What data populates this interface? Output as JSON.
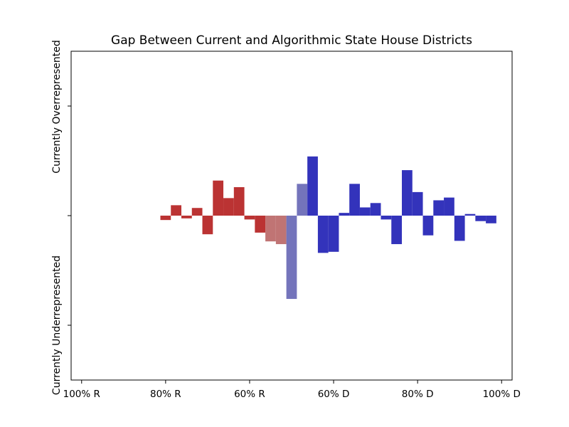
{
  "chart_data": {
    "type": "bar",
    "title": "Gap Between Current and Algorithmic State House Districts",
    "xlabel": "",
    "ylabel_top": "Currently Overrepresented",
    "ylabel_bottom": "Currently Underrepresented",
    "xlim": [
      -52.5,
      52.5
    ],
    "ylim": [
      -3,
      3
    ],
    "yticks": [
      -2,
      0,
      2
    ],
    "ytick_labels": [
      "",
      "",
      ""
    ],
    "xticks": [
      -50,
      -30,
      -10,
      10,
      30,
      50
    ],
    "xtick_labels": [
      "100% R",
      "80% R",
      "60% R",
      "60% D",
      "80% D",
      "100% D"
    ],
    "bar_width": 2.5,
    "colors": {
      "rep": "#bb3333",
      "rep_light": "#c07474",
      "dem": "#3333bb",
      "dem_light": "#7474bb"
    },
    "bars": [
      {
        "x": -30,
        "value": -0.08,
        "color": "rep"
      },
      {
        "x": -27.5,
        "value": 0.19,
        "color": "rep"
      },
      {
        "x": -25,
        "value": -0.05,
        "color": "rep"
      },
      {
        "x": -22.5,
        "value": 0.14,
        "color": "rep"
      },
      {
        "x": -20,
        "value": -0.34,
        "color": "rep"
      },
      {
        "x": -17.5,
        "value": 0.64,
        "color": "rep"
      },
      {
        "x": -15,
        "value": 0.32,
        "color": "rep"
      },
      {
        "x": -12.5,
        "value": 0.52,
        "color": "rep"
      },
      {
        "x": -10,
        "value": -0.07,
        "color": "rep"
      },
      {
        "x": -7.5,
        "value": -0.31,
        "color": "rep"
      },
      {
        "x": -5,
        "value": -0.47,
        "color": "rep_light"
      },
      {
        "x": -2.5,
        "value": -0.52,
        "color": "rep_light"
      },
      {
        "x": 0,
        "value": -1.52,
        "color": "dem_light"
      },
      {
        "x": 2.5,
        "value": 0.58,
        "color": "dem_light"
      },
      {
        "x": 5,
        "value": 1.08,
        "color": "dem"
      },
      {
        "x": 7.5,
        "value": -0.68,
        "color": "dem"
      },
      {
        "x": 10,
        "value": -0.66,
        "color": "dem"
      },
      {
        "x": 12.5,
        "value": 0.05,
        "color": "dem"
      },
      {
        "x": 15,
        "value": 0.58,
        "color": "dem"
      },
      {
        "x": 17.5,
        "value": 0.15,
        "color": "dem"
      },
      {
        "x": 20,
        "value": 0.23,
        "color": "dem"
      },
      {
        "x": 22.5,
        "value": -0.07,
        "color": "dem"
      },
      {
        "x": 25,
        "value": -0.52,
        "color": "dem"
      },
      {
        "x": 27.5,
        "value": 0.83,
        "color": "dem"
      },
      {
        "x": 30,
        "value": 0.43,
        "color": "dem"
      },
      {
        "x": 32.5,
        "value": -0.36,
        "color": "dem"
      },
      {
        "x": 35,
        "value": 0.28,
        "color": "dem"
      },
      {
        "x": 37.5,
        "value": 0.33,
        "color": "dem"
      },
      {
        "x": 40,
        "value": -0.46,
        "color": "dem"
      },
      {
        "x": 42.5,
        "value": 0.03,
        "color": "dem"
      },
      {
        "x": 45,
        "value": -0.1,
        "color": "dem"
      },
      {
        "x": 47.5,
        "value": -0.14,
        "color": "dem"
      }
    ]
  }
}
